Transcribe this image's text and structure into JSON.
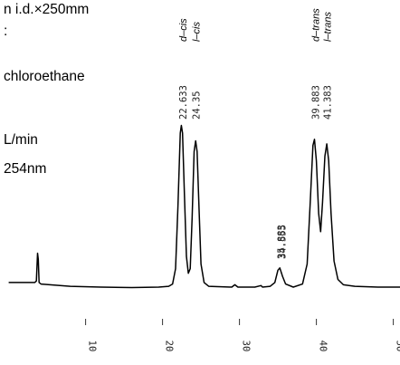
{
  "conditions": {
    "column_size": "n i.d.×250mm",
    "line2": ":",
    "mobile_phase": "chloroethane",
    "flow_rate": "L/min",
    "detection": "254nm"
  },
  "chart_data": {
    "type": "line",
    "title": "",
    "xlabel": "",
    "ylabel": "",
    "xlim": [
      0,
      52
    ],
    "x_ticks": [
      10,
      20,
      30,
      40,
      50
    ],
    "x_tick_labels": [
      "10",
      "20",
      "30",
      "40",
      "50"
    ],
    "grid": false,
    "series": [
      {
        "trace": [
          [
            0,
            3
          ],
          [
            3.4,
            3
          ],
          [
            3.6,
            4
          ],
          [
            3.75,
            22
          ],
          [
            3.85,
            18
          ],
          [
            3.95,
            3
          ],
          [
            4.2,
            2
          ],
          [
            8,
            0.5
          ],
          [
            12,
            0
          ],
          [
            16,
            -0.3
          ],
          [
            19.5,
            0
          ],
          [
            20.8,
            0.5
          ],
          [
            21.3,
            2
          ],
          [
            21.7,
            12
          ],
          [
            22.0,
            52
          ],
          [
            22.3,
            100
          ],
          [
            22.45,
            105
          ],
          [
            22.6,
            100
          ],
          [
            22.85,
            60
          ],
          [
            23.1,
            20
          ],
          [
            23.35,
            9
          ],
          [
            23.6,
            12
          ],
          [
            23.85,
            45
          ],
          [
            24.1,
            88
          ],
          [
            24.3,
            95
          ],
          [
            24.5,
            88
          ],
          [
            24.75,
            50
          ],
          [
            25.0,
            15
          ],
          [
            25.4,
            3
          ],
          [
            26,
            0.5
          ],
          [
            29,
            0
          ],
          [
            29.4,
            1.5
          ],
          [
            29.8,
            0
          ],
          [
            32,
            0
          ],
          [
            32.8,
            1
          ],
          [
            33,
            0
          ],
          [
            34,
            0.5
          ],
          [
            34.6,
            3
          ],
          [
            35.0,
            11
          ],
          [
            35.25,
            12.5
          ],
          [
            35.6,
            7
          ],
          [
            36.0,
            2
          ],
          [
            37,
            0
          ],
          [
            38.2,
            2
          ],
          [
            38.8,
            15
          ],
          [
            39.2,
            55
          ],
          [
            39.55,
            92
          ],
          [
            39.75,
            96
          ],
          [
            40.0,
            82
          ],
          [
            40.3,
            48
          ],
          [
            40.55,
            36
          ],
          [
            40.8,
            55
          ],
          [
            41.1,
            85
          ],
          [
            41.35,
            93
          ],
          [
            41.6,
            82
          ],
          [
            41.9,
            48
          ],
          [
            42.3,
            17
          ],
          [
            42.8,
            5
          ],
          [
            43.5,
            1.5
          ],
          [
            45,
            0.5
          ],
          [
            48,
            0
          ],
          [
            52,
            0
          ]
        ]
      }
    ],
    "peak_labels": [
      {
        "x": 22.633,
        "rt_text": "22.633",
        "name_text": "d–cis"
      },
      {
        "x": 24.35,
        "rt_text": "24.35",
        "name_text": "l–cis"
      },
      {
        "x": 35.4,
        "rt_text": "35.883",
        "name_text": ""
      },
      {
        "x": 35.5,
        "rt_text": "34.555",
        "name_text": ""
      },
      {
        "x": 39.883,
        "rt_text": "39.883",
        "name_text": "d–trans"
      },
      {
        "x": 41.383,
        "rt_text": "41.383",
        "name_text": "l–trans"
      }
    ]
  }
}
